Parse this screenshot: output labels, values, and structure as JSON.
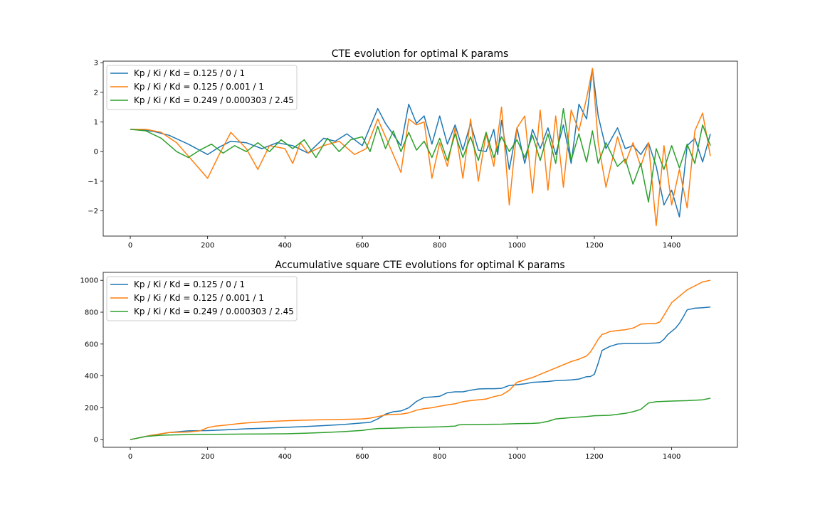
{
  "colors": {
    "series0": "#1f77b4",
    "series1": "#ff7f0e",
    "series2": "#2ca02c",
    "axes": "#000000",
    "legend_border": "#cccccc"
  },
  "chart_data": [
    {
      "type": "line",
      "title": "CTE evolution for optimal K params",
      "xlabel": "",
      "ylabel": "",
      "xlim": [
        -70,
        1570
      ],
      "ylim": [
        -2.85,
        3.05
      ],
      "xticks": [
        0,
        200,
        400,
        600,
        800,
        1000,
        1200,
        1400
      ],
      "xtick_labels": [
        "0",
        "200",
        "400",
        "600",
        "800",
        "1000",
        "1200",
        "1400"
      ],
      "yticks": [
        -2,
        -1,
        0,
        1,
        2,
        3
      ],
      "ytick_labels": [
        "−2",
        "−1",
        "0",
        "1",
        "2",
        "3"
      ],
      "legend": "top-left",
      "series": [
        {
          "name": "Kp / Ki / Kd = 0.125 / 0 / 1",
          "x": [
            0,
            30,
            60,
            100,
            150,
            200,
            230,
            260,
            300,
            340,
            380,
            420,
            460,
            500,
            530,
            560,
            600,
            640,
            660,
            700,
            720,
            740,
            760,
            780,
            800,
            820,
            840,
            860,
            880,
            900,
            920,
            940,
            950,
            960,
            980,
            1000,
            1020,
            1040,
            1060,
            1080,
            1100,
            1120,
            1140,
            1160,
            1180,
            1195,
            1210,
            1230,
            1260,
            1280,
            1300,
            1320,
            1340,
            1360,
            1380,
            1400,
            1420,
            1440,
            1460,
            1480,
            1500
          ],
          "y": [
            0.75,
            0.73,
            0.68,
            0.55,
            0.25,
            -0.1,
            0.15,
            0.35,
            0.3,
            0.1,
            0.3,
            0.2,
            -0.05,
            0.45,
            0.35,
            0.6,
            0.2,
            1.45,
            0.95,
            0.2,
            1.6,
            0.95,
            1.2,
            0.25,
            1.2,
            0.25,
            0.9,
            0.05,
            0.95,
            0.05,
            0.0,
            0.75,
            -0.1,
            1.05,
            -0.6,
            0.8,
            -0.4,
            0.75,
            0.1,
            0.8,
            -0.1,
            0.9,
            -0.4,
            1.6,
            1.1,
            2.8,
            1.2,
            0.1,
            0.8,
            0.1,
            0.2,
            -0.1,
            0.3,
            -0.5,
            -1.8,
            -1.3,
            -2.2,
            0.2,
            0.45,
            -0.35,
            0.6
          ]
        },
        {
          "name": "Kp / Ki / Kd = 0.125 / 0.001 / 1",
          "x": [
            0,
            40,
            80,
            120,
            160,
            200,
            230,
            260,
            300,
            330,
            360,
            400,
            420,
            440,
            460,
            500,
            540,
            580,
            610,
            640,
            660,
            700,
            720,
            740,
            760,
            780,
            800,
            820,
            840,
            860,
            880,
            900,
            920,
            940,
            960,
            980,
            1000,
            1020,
            1040,
            1060,
            1080,
            1100,
            1120,
            1140,
            1160,
            1180,
            1195,
            1210,
            1230,
            1260,
            1280,
            1300,
            1320,
            1340,
            1360,
            1380,
            1400,
            1420,
            1440,
            1460,
            1480,
            1500
          ],
          "y": [
            0.75,
            0.75,
            0.65,
            0.3,
            -0.3,
            -0.9,
            -0.1,
            0.65,
            0.1,
            -0.6,
            0.2,
            0.1,
            -0.4,
            0.3,
            -0.05,
            0.2,
            0.35,
            -0.1,
            0.1,
            1.1,
            0.5,
            -0.7,
            1.1,
            0.9,
            1.0,
            -0.9,
            0.3,
            -0.5,
            0.8,
            -0.9,
            1.1,
            -1.0,
            0.6,
            -0.5,
            1.5,
            -1.8,
            0.8,
            1.2,
            -1.4,
            1.4,
            -1.3,
            1.2,
            -1.2,
            1.4,
            0.7,
            1.8,
            2.8,
            0.3,
            -1.2,
            0.5,
            -0.4,
            0.3,
            -0.5,
            0.3,
            -2.5,
            0.2,
            -1.8,
            -0.6,
            -1.9,
            0.7,
            1.3,
            -0.15
          ]
        },
        {
          "name": "Kp / Ki / Kd = 0.249 / 0.000303 / 2.45",
          "x": [
            0,
            40,
            80,
            120,
            150,
            180,
            210,
            240,
            270,
            300,
            330,
            360,
            390,
            420,
            450,
            480,
            510,
            540,
            570,
            600,
            620,
            640,
            660,
            680,
            700,
            720,
            740,
            760,
            780,
            800,
            820,
            840,
            860,
            880,
            900,
            920,
            940,
            960,
            980,
            1000,
            1020,
            1040,
            1060,
            1080,
            1100,
            1120,
            1140,
            1160,
            1180,
            1195,
            1210,
            1230,
            1260,
            1280,
            1300,
            1320,
            1340,
            1360,
            1380,
            1400,
            1420,
            1440,
            1460,
            1480,
            1500
          ],
          "y": [
            0.75,
            0.7,
            0.45,
            0.0,
            -0.2,
            0.05,
            0.25,
            -0.05,
            0.2,
            0.0,
            0.3,
            0.0,
            0.4,
            0.1,
            0.4,
            -0.2,
            0.45,
            0.0,
            0.4,
            0.5,
            0.0,
            0.85,
            0.1,
            0.7,
            0.0,
            0.65,
            0.05,
            0.35,
            -0.2,
            0.45,
            -0.3,
            0.6,
            -0.2,
            0.5,
            -0.3,
            0.65,
            -0.2,
            0.5,
            0.0,
            0.4,
            -0.2,
            0.55,
            -0.3,
            0.6,
            -0.4,
            1.45,
            -0.3,
            0.6,
            -0.35,
            0.7,
            -0.4,
            0.3,
            -0.5,
            -0.25,
            -1.1,
            -0.4,
            -1.7,
            0.1,
            -0.6,
            0.2,
            -0.55,
            0.25,
            -0.4,
            0.9,
            0.2
          ]
        }
      ]
    },
    {
      "type": "line",
      "title": "Accumulative square CTE evolutions for optimal K params",
      "xlabel": "",
      "ylabel": "",
      "xlim": [
        -70,
        1570
      ],
      "ylim": [
        -48,
        1050
      ],
      "xticks": [
        0,
        200,
        400,
        600,
        800,
        1000,
        1200,
        1400
      ],
      "xtick_labels": [
        "0",
        "200",
        "400",
        "600",
        "800",
        "1000",
        "1200",
        "1400"
      ],
      "yticks": [
        0,
        200,
        400,
        600,
        800,
        1000
      ],
      "ytick_labels": [
        "0",
        "200",
        "400",
        "600",
        "800",
        "1000"
      ],
      "legend": "top-left",
      "series": [
        {
          "name": "Kp / Ki / Kd = 0.125 / 0 / 1",
          "x": [
            0,
            50,
            100,
            150,
            200,
            250,
            300,
            350,
            400,
            450,
            500,
            550,
            600,
            620,
            640,
            660,
            680,
            700,
            720,
            740,
            760,
            780,
            800,
            820,
            840,
            860,
            880,
            900,
            920,
            940,
            960,
            980,
            1000,
            1020,
            1040,
            1060,
            1080,
            1100,
            1120,
            1140,
            1160,
            1180,
            1190,
            1200,
            1210,
            1220,
            1240,
            1260,
            1280,
            1300,
            1320,
            1340,
            1350,
            1360,
            1370,
            1380,
            1390,
            1400,
            1410,
            1420,
            1430,
            1440,
            1460,
            1480,
            1500
          ],
          "y": [
            0,
            25,
            45,
            55,
            57,
            62,
            68,
            72,
            77,
            82,
            88,
            95,
            105,
            108,
            130,
            160,
            175,
            180,
            200,
            240,
            265,
            268,
            272,
            295,
            300,
            300,
            310,
            318,
            320,
            320,
            322,
            340,
            345,
            350,
            360,
            362,
            365,
            370,
            372,
            375,
            380,
            395,
            396,
            410,
            480,
            560,
            585,
            600,
            603,
            603,
            604,
            605,
            606,
            607,
            610,
            630,
            660,
            680,
            700,
            730,
            770,
            815,
            825,
            828,
            832
          ]
        },
        {
          "name": "Kp / Ki / Kd = 0.125 / 0.001 / 1",
          "x": [
            0,
            50,
            100,
            150,
            180,
            200,
            220,
            250,
            280,
            300,
            320,
            350,
            400,
            450,
            500,
            550,
            600,
            620,
            640,
            660,
            680,
            700,
            720,
            740,
            760,
            780,
            800,
            820,
            840,
            860,
            880,
            900,
            920,
            940,
            960,
            980,
            1000,
            1020,
            1040,
            1060,
            1080,
            1100,
            1120,
            1140,
            1160,
            1180,
            1190,
            1200,
            1210,
            1220,
            1230,
            1240,
            1260,
            1280,
            1300,
            1320,
            1340,
            1360,
            1370,
            1380,
            1390,
            1400,
            1420,
            1440,
            1460,
            1480,
            1500
          ],
          "y": [
            0,
            25,
            45,
            48,
            55,
            75,
            85,
            92,
            100,
            105,
            108,
            113,
            118,
            122,
            125,
            127,
            130,
            135,
            145,
            155,
            158,
            160,
            168,
            185,
            195,
            200,
            210,
            218,
            225,
            238,
            245,
            250,
            255,
            270,
            280,
            310,
            360,
            375,
            390,
            410,
            430,
            450,
            470,
            490,
            505,
            525,
            550,
            590,
            630,
            660,
            668,
            678,
            685,
            690,
            700,
            725,
            728,
            730,
            740,
            780,
            820,
            860,
            900,
            940,
            965,
            990,
            1000
          ]
        },
        {
          "name": "Kp / Ki / Kd = 0.249 / 0.000303 / 2.45",
          "x": [
            0,
            40,
            80,
            120,
            160,
            200,
            250,
            300,
            350,
            400,
            450,
            500,
            550,
            600,
            620,
            640,
            680,
            720,
            760,
            800,
            840,
            850,
            880,
            920,
            960,
            1000,
            1040,
            1060,
            1080,
            1100,
            1140,
            1180,
            1200,
            1240,
            1280,
            1300,
            1320,
            1340,
            1360,
            1400,
            1440,
            1480,
            1500
          ],
          "y": [
            0,
            20,
            28,
            30,
            32,
            33,
            34,
            35,
            36,
            37,
            40,
            45,
            50,
            58,
            65,
            70,
            72,
            75,
            78,
            80,
            85,
            93,
            95,
            96,
            97,
            100,
            102,
            105,
            115,
            130,
            138,
            145,
            150,
            153,
            165,
            175,
            190,
            230,
            238,
            242,
            245,
            250,
            260
          ]
        }
      ]
    }
  ]
}
